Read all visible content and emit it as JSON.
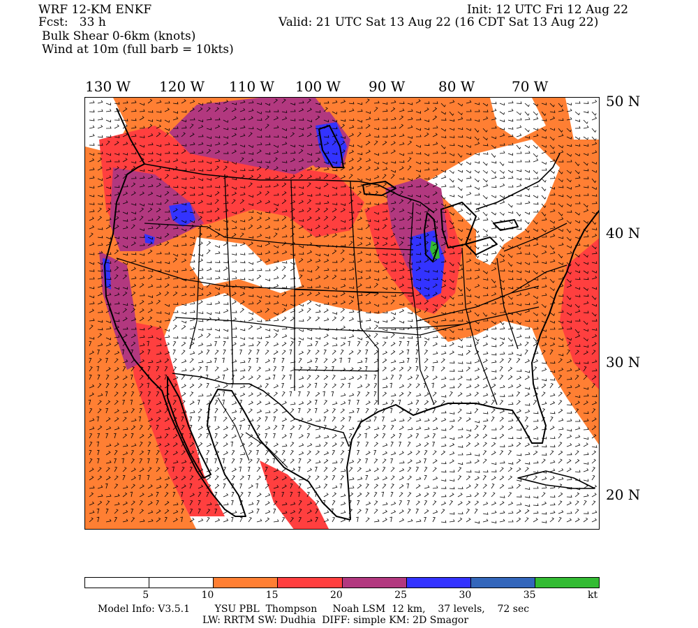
{
  "header": {
    "model": "WRF 12-KM ENKF",
    "fcst": "Fcst:   33 h",
    "field": "Bulk Shear 0-6km (knots)",
    "wind": "Wind at 10m (full barb = 10kts)",
    "init": "Init: 12 UTC Fri 12 Aug 22",
    "valid": "Valid: 21 UTC Sat 13 Aug 22 (16 CDT Sat 13 Aug 22)"
  },
  "map": {
    "longitude_labels": [
      "130 W",
      "120 W",
      "110 W",
      "100 W",
      "90 W",
      "80 W",
      "70 W"
    ],
    "latitude_labels": [
      "50 N",
      "40 N",
      "30 N",
      "20 N"
    ]
  },
  "colorbar": {
    "colors": [
      "#ffffff",
      "#ffffff",
      "#ff7f33",
      "#ff3f3f",
      "#b2387f",
      "#3333ff",
      "#3366bb",
      "#33bb33"
    ],
    "tick_labels": [
      "5",
      "10",
      "15",
      "20",
      "25",
      "30",
      "35",
      "kt"
    ],
    "ranges": [
      [
        0,
        5
      ],
      [
        5,
        10
      ],
      [
        10,
        15
      ],
      [
        15,
        20
      ],
      [
        20,
        25
      ],
      [
        25,
        30
      ],
      [
        30,
        35
      ],
      [
        35,
        40
      ]
    ]
  },
  "footer": {
    "line1": "Model Info: V3.5.1        YSU PBL  Thompson     Noah LSM  12 km,    37 levels,    72 sec",
    "line2": "LW: RRTM SW: Dudhia  DIFF: simple KM: 2D Smagor"
  }
}
